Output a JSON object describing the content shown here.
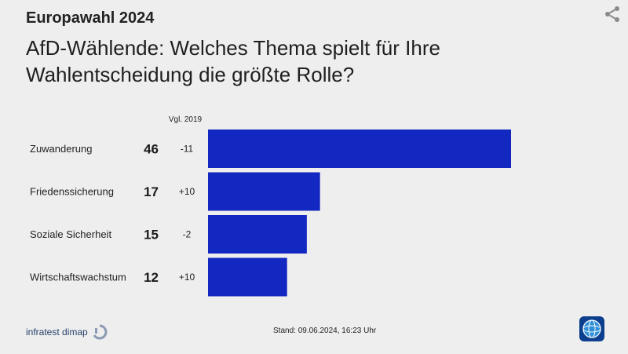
{
  "header": {
    "supertitle": "Europawahl 2024",
    "title": "AfD-Wählende: Welches Thema spielt für Ihre Wahlentscheidung die größte Rolle?"
  },
  "icons": {
    "share": "share-icon",
    "source_mark": "infratest-logo-mark",
    "broadcaster": "tagesschau-globe-logo"
  },
  "colors": {
    "bar": "#1228c0",
    "background": "#eeeeee"
  },
  "chart_data": {
    "type": "bar",
    "orientation": "horizontal",
    "categories": [
      "Zuwanderung",
      "Friedenssicherung",
      "Soziale Sicherheit",
      "Wirtschaftswachstum"
    ],
    "values": [
      46,
      17,
      15,
      12
    ],
    "value_labels": [
      "46",
      "17",
      "15",
      "12"
    ],
    "comparison_header": "Vgl. 2019",
    "comparison": [
      "-11",
      "+10",
      "-2",
      "+10"
    ],
    "xlim": [
      0,
      46
    ],
    "grid": false
  },
  "footer": {
    "stand": "Stand:  09.06.2024, 16:23 Uhr",
    "source": "infratest dimap"
  }
}
